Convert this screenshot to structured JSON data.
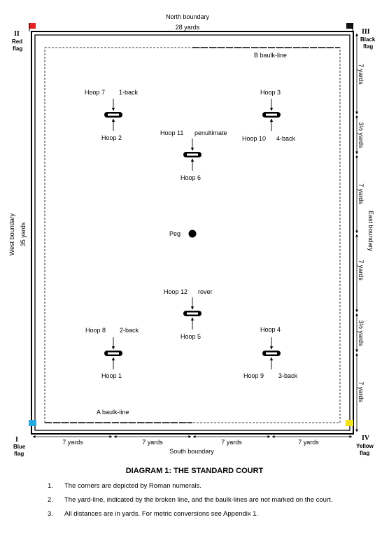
{
  "labels": {
    "north_boundary": "North boundary",
    "south_boundary": "South boundary",
    "west_boundary": "West boundary",
    "east_boundary": "East boundary",
    "width": "28 yards",
    "length": "35 yards",
    "b_baulk": "B baulk-line",
    "a_baulk": "A baulk-line",
    "peg": "Peg"
  },
  "corners": {
    "c1": {
      "numeral": "I",
      "line1": "Blue",
      "line2": "flag",
      "color": "#29a8e0"
    },
    "c2": {
      "numeral": "II",
      "line1": "Red",
      "line2": "flag",
      "color": "#e52222"
    },
    "c3": {
      "numeral": "III",
      "line1": "Black",
      "line2": "flag",
      "color": "#111111"
    },
    "c4": {
      "numeral": "IV",
      "line1": "Yellow",
      "line2": "flag",
      "color": "#f2e21a"
    }
  },
  "hoops": {
    "h1": {
      "above_a": "Hoop 8",
      "above_b": "2-back",
      "below_a": "Hoop 1",
      "below_b": ""
    },
    "h2": {
      "above_a": "Hoop 7",
      "above_b": "1-back",
      "below_a": "Hoop 2",
      "below_b": ""
    },
    "h3": {
      "above_a": "Hoop 3",
      "above_b": "",
      "below_a": "Hoop 10",
      "below_b": "4-back"
    },
    "h4": {
      "above_a": "Hoop 4",
      "above_b": "",
      "below_a": "Hoop 9",
      "below_b": "3-back"
    },
    "h5": {
      "above_a": "Hoop 12",
      "above_b": "rover",
      "below_a": "Hoop 5",
      "below_b": ""
    },
    "h6": {
      "above_a": "Hoop 11",
      "above_b": "penultimate",
      "below_a": "Hoop 6",
      "below_b": ""
    }
  },
  "east_dims": [
    "7 yards",
    "3½ yards",
    "7 yards",
    "7 yards",
    "3½ yards",
    "7 yards"
  ],
  "south_dims": [
    "7 yards",
    "7 yards",
    "7 yards",
    "7 yards"
  ],
  "caption": "DIAGRAM 1:  THE STANDARD COURT",
  "notes": [
    {
      "num": "1.",
      "text": "The corners are depicted by Roman numerals."
    },
    {
      "num": "2.",
      "text": "The yard-line, indicated by the broken line, and the baulk-lines are not marked on the court."
    },
    {
      "num": "3.",
      "text": "All distances are in yards.  For metric conversions see Appendix 1."
    }
  ]
}
